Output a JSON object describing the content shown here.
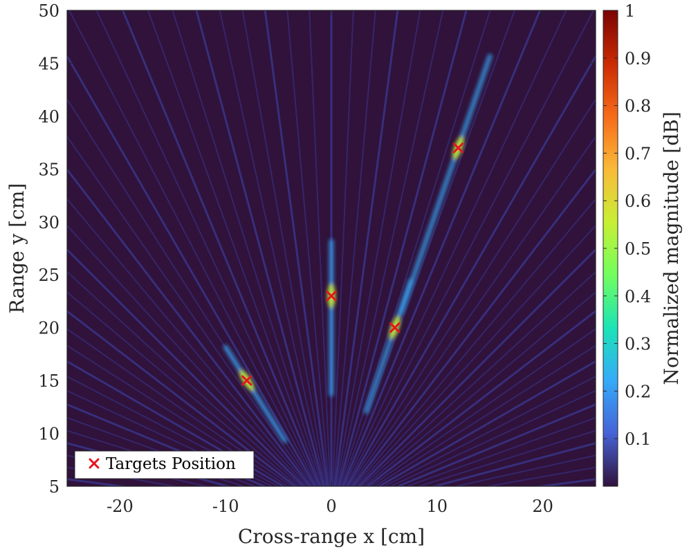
{
  "chart_data": {
    "type": "heatmap",
    "title": "",
    "xlabel": "Cross-range x [cm]",
    "ylabel": "Range y [cm]",
    "xlim": [
      -25,
      25
    ],
    "ylim": [
      5,
      50
    ],
    "x_ticks": [
      -20,
      -10,
      0,
      10,
      20
    ],
    "y_ticks": [
      5,
      10,
      15,
      20,
      25,
      30,
      35,
      40,
      45,
      50
    ],
    "grid": false,
    "colorbar": {
      "label": "Normalized magnitude [dB]",
      "range": [
        0,
        1
      ],
      "ticks": [
        "0.1",
        "0.2",
        "0.3",
        "0.4",
        "0.5",
        "0.6",
        "0.7",
        "0.8",
        "0.9",
        "1"
      ],
      "colormap": [
        "#30123b",
        "#4662d7",
        "#36aaf9",
        "#1ae4b6",
        "#72fe5e",
        "#c8ef34",
        "#faba39",
        "#f66b19",
        "#ca2a04",
        "#7a0403"
      ]
    },
    "series": [
      {
        "name": "Targets Position",
        "marker": "x",
        "color": "#e8141e",
        "points": [
          {
            "x": -8,
            "y": 15
          },
          {
            "x": 0,
            "y": 23
          },
          {
            "x": 6,
            "y": 20
          },
          {
            "x": 12,
            "y": 37
          }
        ]
      }
    ],
    "legend": {
      "placement": "bottom-left",
      "entries": [
        "Targets Position"
      ]
    }
  }
}
